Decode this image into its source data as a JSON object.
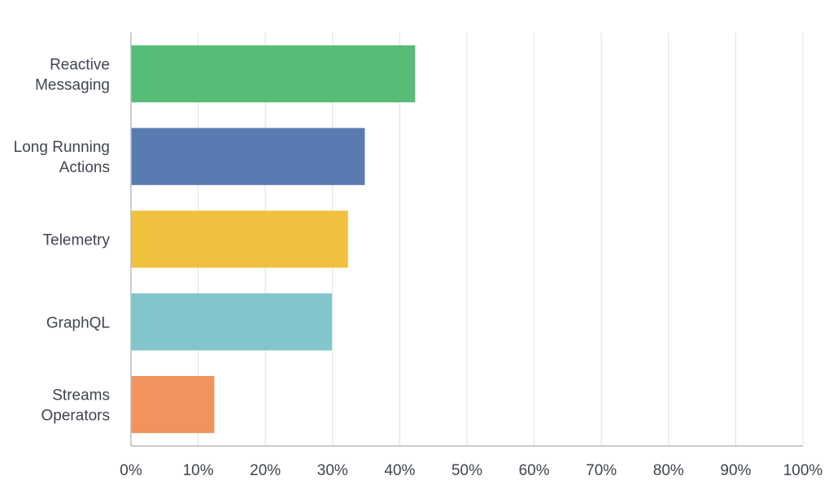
{
  "chart_data": {
    "type": "bar",
    "orientation": "horizontal",
    "categories": [
      [
        "Reactive",
        "Messaging"
      ],
      [
        "Long Running",
        "Actions"
      ],
      [
        "Telemetry"
      ],
      [
        "GraphQL"
      ],
      [
        "Streams",
        "Operators"
      ]
    ],
    "values": [
      42.3,
      34.8,
      32.3,
      29.9,
      12.4
    ],
    "colors": [
      "#57bd76",
      "#5a7bb2",
      "#f0c03f",
      "#82c5cb",
      "#f0935c"
    ],
    "xlim": [
      0,
      100
    ],
    "xticks": [
      "0%",
      "10%",
      "20%",
      "30%",
      "40%",
      "50%",
      "60%",
      "70%",
      "80%",
      "90%",
      "100%"
    ],
    "grid": true,
    "title": "",
    "xlabel": "",
    "ylabel": ""
  }
}
